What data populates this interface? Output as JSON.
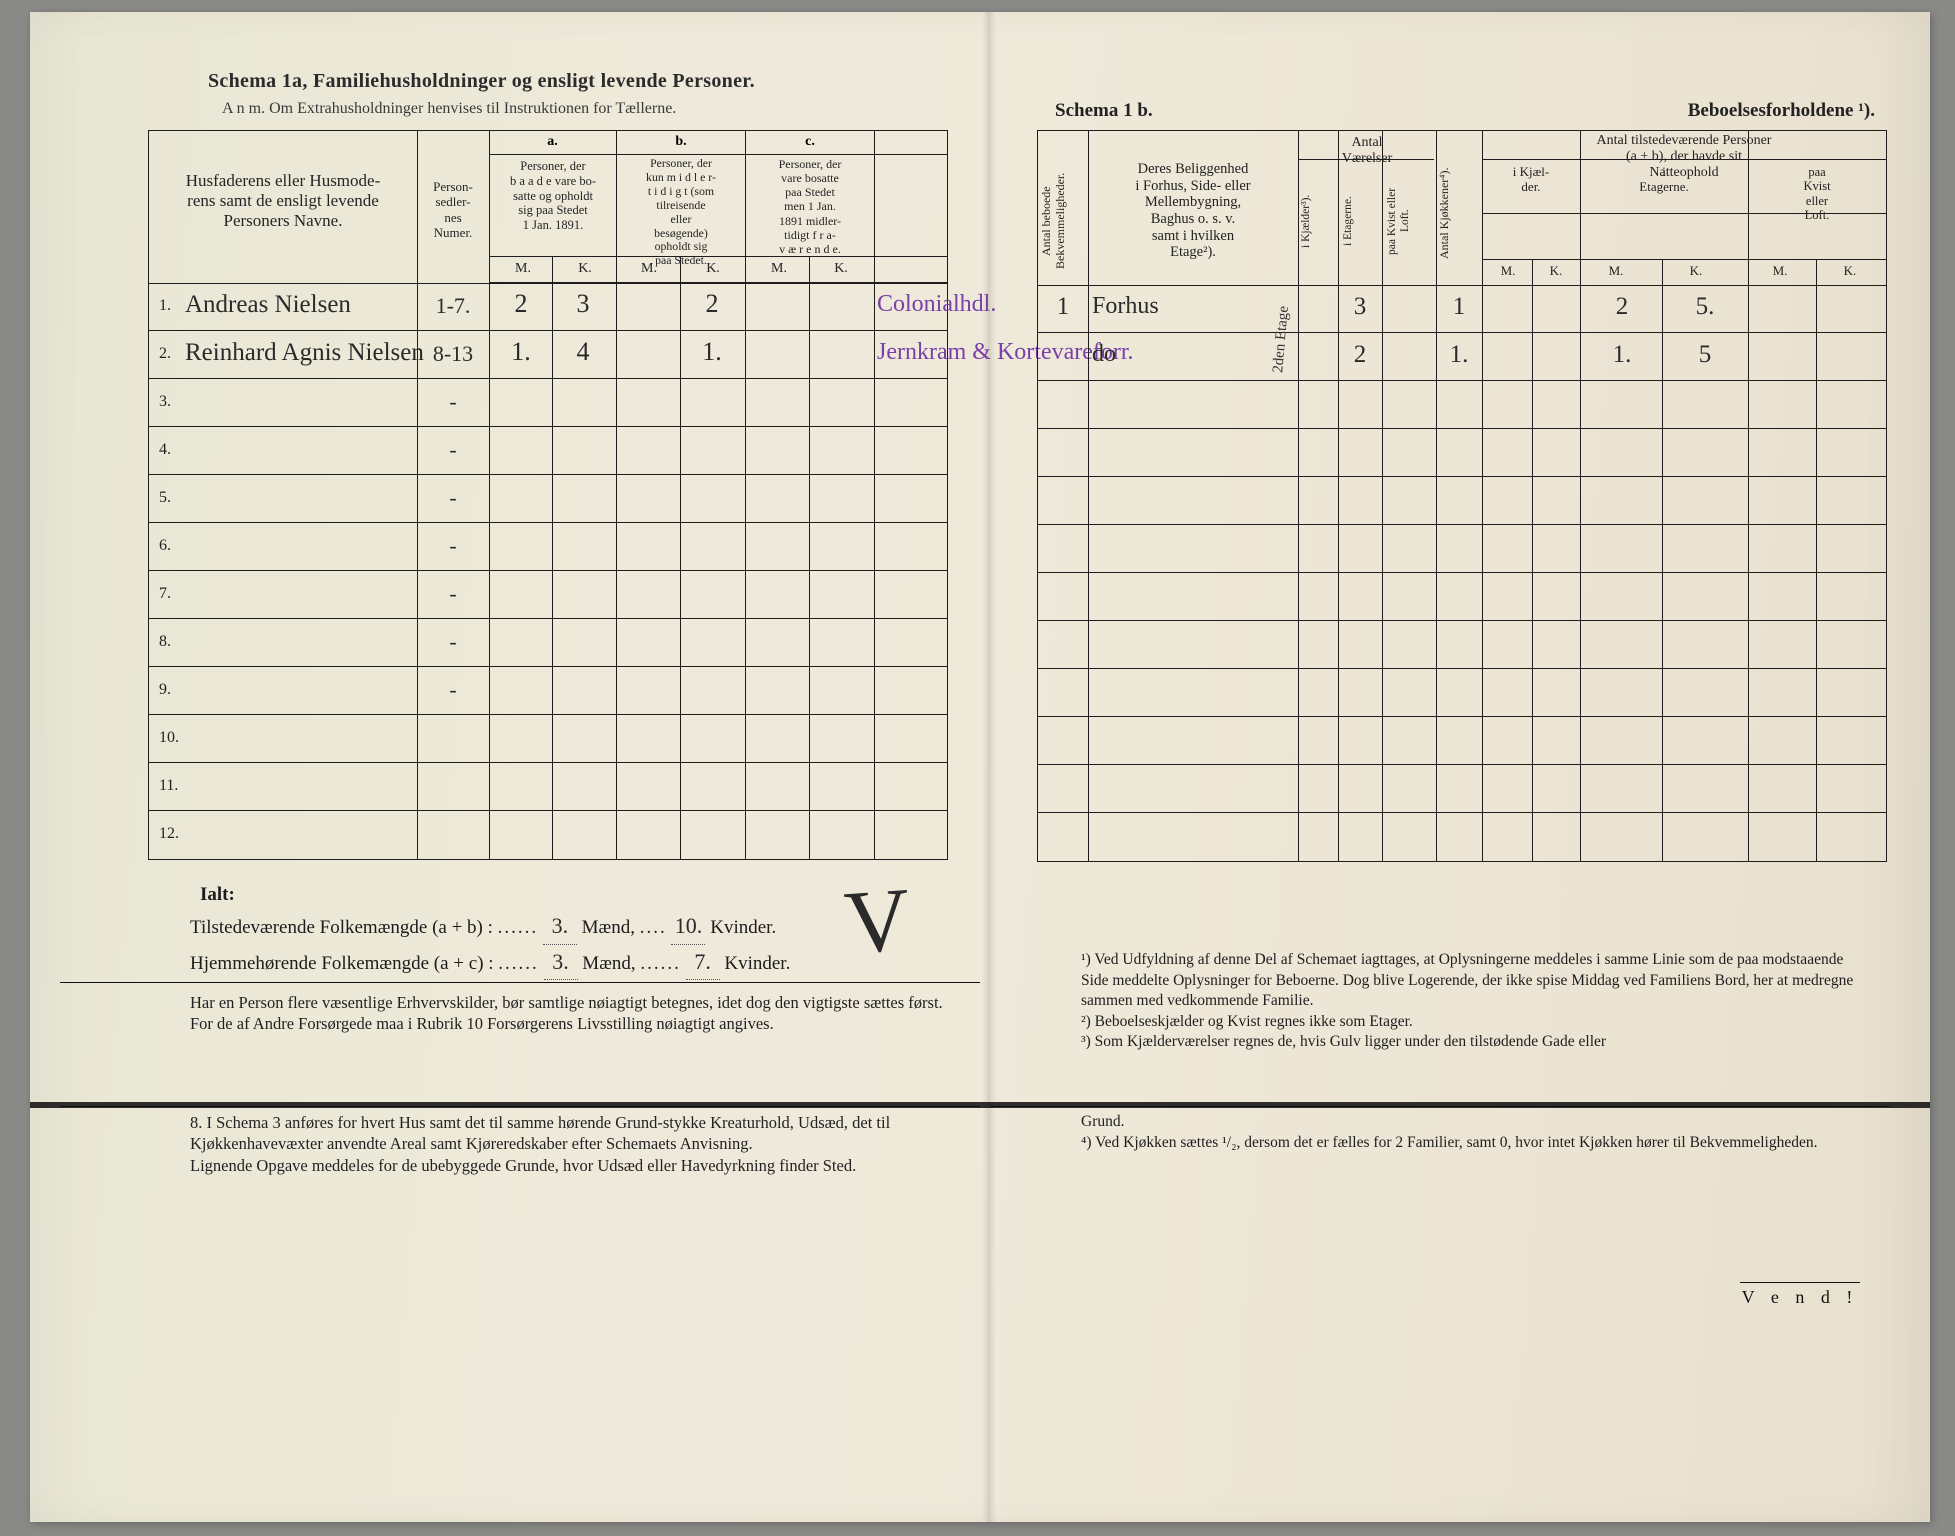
{
  "left": {
    "title": "Schema 1a,  Familiehusholdninger og ensligt levende Personer.",
    "anm": "A n m.  Om Extrahusholdninger henvises til Instruktionen for Tællerne.",
    "headers": {
      "names": "Husfaderens eller Husmode-\nrens samt de ensligt levende\nPersoners Navne.",
      "sedler": "Person-\nsedler-\nnes\nNumer.",
      "a_label": "a.",
      "b_label": "b.",
      "c_label": "c.",
      "a": "Personer, der\nb a a d e vare bo-\nsatte og opholdt\nsig paa Stedet\n1 Jan. 1891.",
      "b": "Personer, der\nkun m i d l e r-\nt i d i g t (som\ntilreisende\neller\nbesøgende)\nopholdt sig\npaa Stedet.",
      "c": "Personer, der\nvare bosatte\npaa Stedet\nmen 1 Jan.\n1891 midler-\ntidigt f r a-\nv æ r e n d e.",
      "m": "M.",
      "k": "K."
    },
    "rows": [
      {
        "n": "1.",
        "name": "Andreas Nielsen",
        "num": "1-7.",
        "aM": "2",
        "aK": "3",
        "bM": "",
        "bK": "2",
        "cM": "",
        "cK": "",
        "txt": "Colonialhdl."
      },
      {
        "n": "2.",
        "name": "Reinhard Agnis Nielsen",
        "num": "8-13",
        "aM": "1.",
        "aK": "4",
        "bM": "",
        "bK": "1.",
        "cM": "",
        "cK": "",
        "txt": "Jernkram & Kortevareforr."
      },
      {
        "n": "3.",
        "name": "",
        "num": "-"
      },
      {
        "n": "4.",
        "name": "",
        "num": "-"
      },
      {
        "n": "5.",
        "name": "",
        "num": "-"
      },
      {
        "n": "6.",
        "name": "",
        "num": "-"
      },
      {
        "n": "7.",
        "name": "",
        "num": "-"
      },
      {
        "n": "8.",
        "name": "",
        "num": "-"
      },
      {
        "n": "9.",
        "name": "",
        "num": "-"
      },
      {
        "n": "10.",
        "name": "",
        "num": ""
      },
      {
        "n": "11.",
        "name": "",
        "num": ""
      },
      {
        "n": "12.",
        "name": "",
        "num": ""
      }
    ],
    "totals": {
      "ialt": "Ialt:",
      "line1a": "Tilstedeværende Folkemængde (a + b) : ",
      "line1M": "3.",
      "line1mid": " Mænd, ",
      "line1K": "10.",
      "line1end": " Kvinder.",
      "line2a": "Hjemmehørende Folkemængde (a + c) : ",
      "line2M": "3.",
      "line2K": "7.",
      "check": "V"
    },
    "para1": "Har en Person flere væsentlige Erhvervskilder, bør samtlige nøiagtigt betegnes, idet dog den vigtigste sættes først.\n   For de af Andre Forsørgede maa i Rubrik 10 Forsørgerens Livsstilling nøiagtigt angives.",
    "para2": "8. I Schema 3 anføres for hvert Hus samt det til samme hørende Grund-stykke Kreaturhold, Udsæd, det til Kjøkkenhavevæxter anvendte Areal samt Kjøreredskaber efter Schemaets Anvisning.\n   Lignende Opgave meddeles for de ubebyggede Grunde, hvor Udsæd eller Havedyrkning finder Sted."
  },
  "right": {
    "title_a": "Schema 1 b.",
    "title_b": "Beboelsesforholdene ¹).",
    "headers": {
      "antalBeb": "Antal beboede\nBekvemmeligheder.",
      "belig": "Deres Beliggenhed\ni Forhus, Side- eller\nMellembygning,\nBaghus o. s. v.\nsamt i hvilken\nEtage²).",
      "antalV": "Antal\nVærelser",
      "iK": "i Kjælder³).",
      "iE": "i Etagerne.",
      "pK": "paa Kvist eller\nLoft.",
      "kjok": "Antal Kjøkkener⁴).",
      "tilst": "Antal tilstedeværende Personer\n(a + b), der havde sit\nNatteophold",
      "nK": "i Kjæl-\nder.",
      "nE": "i\nEtagerne.",
      "nL": "paa\nKvist\neller\nLoft.",
      "m": "M.",
      "k": "K."
    },
    "rows": [
      {
        "beb": "1",
        "belig": "Forhus",
        "etg": "2den Etage",
        "iK": "",
        "iE": "3",
        "pK": "",
        "kj": "1",
        "nKm": "",
        "nKk": "",
        "nEm": "2",
        "nEk": "5.",
        "nLm": "",
        "nLk": ""
      },
      {
        "beb": "",
        "belig": "do",
        "etg": "",
        "iK": "",
        "iE": "2",
        "pK": "",
        "kj": "1.",
        "nKm": "",
        "nKk": "",
        "nEm": "1.",
        "nEk": "5",
        "nLm": "",
        "nLk": ""
      },
      {},
      {},
      {},
      {},
      {},
      {},
      {},
      {},
      {},
      {}
    ],
    "foot1": "¹) Ved Udfyldning af denne Del af Schemaet iagttages, at Oplysningerne meddeles i samme Linie som de paa modstaaende Side meddelte Oplysninger for Beboerne. Dog blive Logerende, der ikke spise Middag ved Familiens Bord, her at medregne sammen med vedkommende Familie.\n   ²) Beboelseskjælder og Kvist regnes ikke som Etager.\n   ³) Som Kjælderværelser regnes de, hvis Gulv ligger under den tilstødende Gade eller",
    "foot2": "Grund.\n   ⁴) Ved Kjøkken sættes ¹/₂, dersom det er fælles for 2 Familier, samt 0, hvor intet Kjøkken hører til Bekvemmeligheden.",
    "vend": "V e n d !"
  },
  "colors": {
    "ink": "#1d1d1d",
    "handwriting": "#2a2a2a",
    "purple": "#7a3fa8",
    "paper": "#ece7d6"
  }
}
